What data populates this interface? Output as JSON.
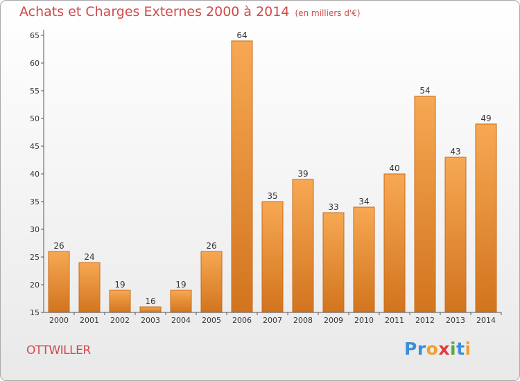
{
  "page": {
    "title": "Achats et Charges Externes 2000 à 2014",
    "unit": "(en milliers d'€)",
    "commune": "OTTWILLER",
    "logo": "Proxiti"
  },
  "colors": {
    "title": "#d24a4a",
    "bar_light": "#f7a853",
    "bar_dark": "#d2741e",
    "axis": "#555555",
    "logo": [
      "#3b8fd8",
      "#3b8fd8",
      "#f0a030",
      "#e03c3c",
      "#5aa83c",
      "#3b8fd8",
      "#f0a030"
    ]
  },
  "chart_data": {
    "type": "bar",
    "title": "Achats et Charges Externes 2000 à 2014",
    "subtitle": "(en milliers d'€)",
    "categories": [
      "2000",
      "2001",
      "2002",
      "2003",
      "2004",
      "2005",
      "2006",
      "2007",
      "2008",
      "2009",
      "2010",
      "2011",
      "2012",
      "2013",
      "2014"
    ],
    "values": [
      26,
      24,
      19,
      16,
      19,
      26,
      64,
      35,
      39,
      33,
      34,
      40,
      54,
      43,
      49
    ],
    "ylim": [
      15,
      65
    ],
    "yticks": [
      15,
      20,
      25,
      30,
      35,
      40,
      45,
      50,
      55,
      60,
      65
    ],
    "grid": false,
    "legend": "none"
  }
}
